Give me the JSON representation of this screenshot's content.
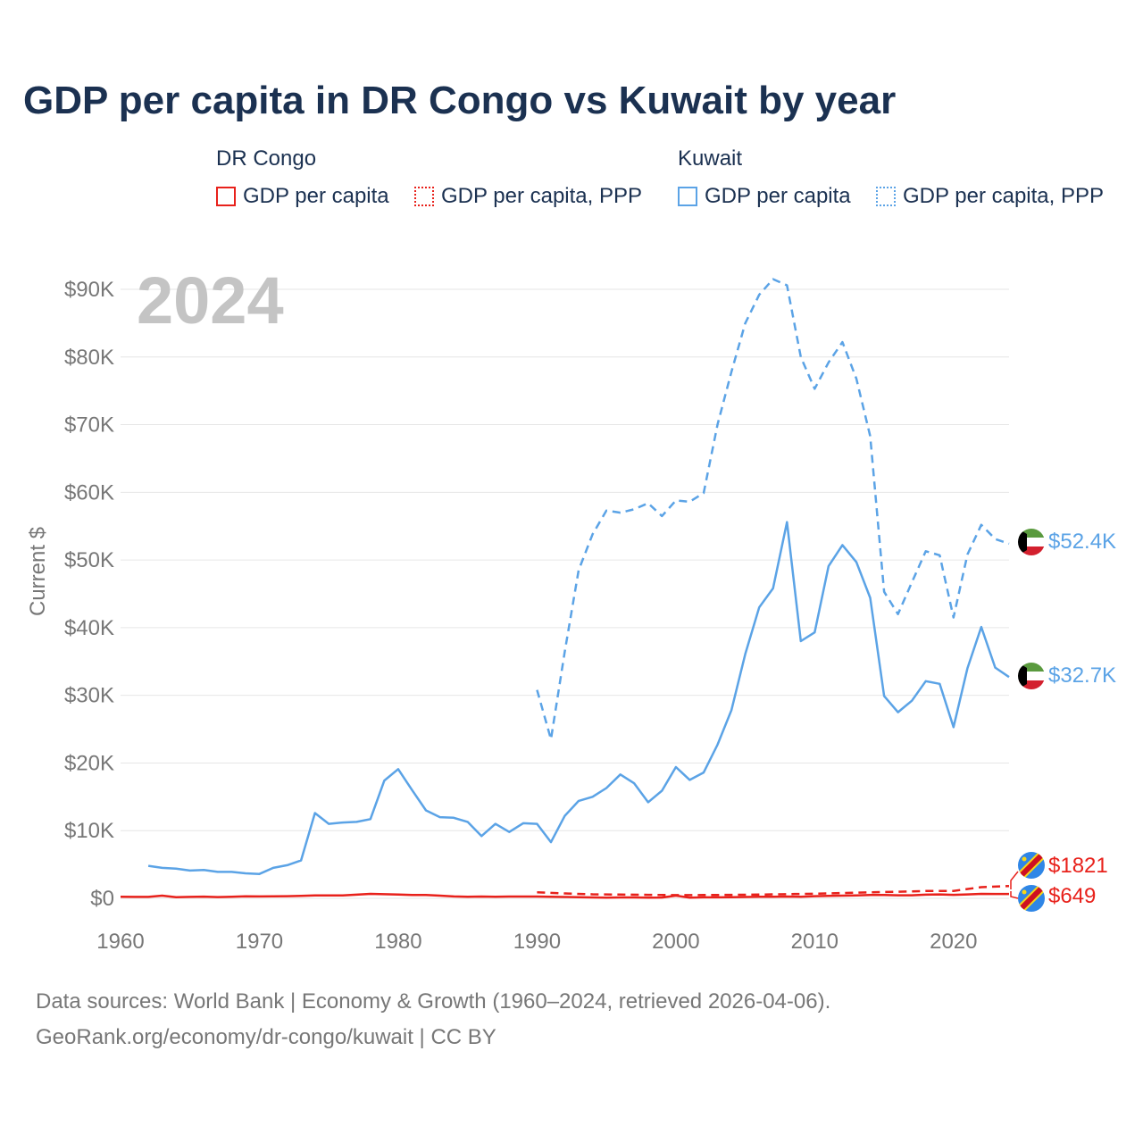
{
  "title": "GDP per capita in DR Congo vs Kuwait by year",
  "legend": {
    "groups": [
      {
        "name": "DR Congo",
        "color": "#e8211b",
        "items": [
          {
            "label": "GDP per capita",
            "style": "solid"
          },
          {
            "label": "GDP per capita, PPP",
            "style": "dotted"
          }
        ]
      },
      {
        "name": "Kuwait",
        "color": "#5ba3e6",
        "items": [
          {
            "label": "GDP per capita",
            "style": "solid"
          },
          {
            "label": "GDP per capita, PPP",
            "style": "dotted"
          }
        ]
      }
    ]
  },
  "year_watermark": "2024",
  "footer": {
    "line1": "Data sources: World Bank | Economy & Growth (1960–2024, retrieved 2026-04-06).",
    "line2": "GeoRank.org/economy/dr-congo/kuwait | CC BY"
  },
  "chart_data": {
    "type": "line",
    "title": "GDP per capita in DR Congo vs Kuwait by year",
    "xlabel": "",
    "ylabel": "Current $",
    "xlim": [
      1960,
      2024
    ],
    "ylim": [
      0,
      90000
    ],
    "x_ticks": [
      1960,
      1970,
      1980,
      1990,
      2000,
      2010,
      2020
    ],
    "x_tick_labels": [
      "1960",
      "1970",
      "1980",
      "1990",
      "2000",
      "2010",
      "2020"
    ],
    "y_ticks": [
      0,
      10000,
      20000,
      30000,
      40000,
      50000,
      60000,
      70000,
      80000,
      90000
    ],
    "y_tick_labels": [
      "$0",
      "$10K",
      "$20K",
      "$30K",
      "$40K",
      "$50K",
      "$60K",
      "$70K",
      "$80K",
      "$90K"
    ],
    "grid": true,
    "series": [
      {
        "name": "Kuwait GDP per capita",
        "country": "Kuwait",
        "color": "#5ba3e6",
        "dash": "solid",
        "x": [
          1962,
          1963,
          1964,
          1965,
          1966,
          1967,
          1968,
          1969,
          1970,
          1971,
          1972,
          1973,
          1974,
          1975,
          1976,
          1977,
          1978,
          1979,
          1980,
          1981,
          1982,
          1983,
          1984,
          1985,
          1986,
          1987,
          1988,
          1989,
          1990,
          1991,
          1992,
          1993,
          1994,
          1995,
          1996,
          1997,
          1998,
          1999,
          2000,
          2001,
          2002,
          2003,
          2004,
          2005,
          2006,
          2007,
          2008,
          2009,
          2010,
          2011,
          2012,
          2013,
          2014,
          2015,
          2016,
          2017,
          2018,
          2019,
          2020,
          2021,
          2022,
          2023,
          2024
        ],
        "y": [
          4800,
          4500,
          4400,
          4100,
          4200,
          3900,
          3900,
          3700,
          3600,
          4500,
          4900,
          5600,
          12600,
          11000,
          11200,
          11300,
          11700,
          17400,
          19100,
          16000,
          13000,
          12000,
          11900,
          11300,
          9200,
          11000,
          9800,
          11100,
          11000,
          8300,
          12200,
          14400,
          15000,
          16300,
          18300,
          17000,
          14200,
          15900,
          19400,
          17500,
          18600,
          22700,
          27800,
          36100,
          43000,
          45800,
          55600,
          38000,
          39300,
          49100,
          52200,
          49700,
          44400,
          29900,
          27500,
          29200,
          32100,
          31700,
          25300,
          34000,
          40100,
          34100,
          32700
        ],
        "end_label": "$32.7K"
      },
      {
        "name": "Kuwait GDP per capita, PPP",
        "country": "Kuwait",
        "color": "#5ba3e6",
        "dash": "dashed",
        "x": [
          1990,
          1991,
          1992,
          1993,
          1994,
          1995,
          1996,
          1997,
          1998,
          1999,
          2000,
          2001,
          2002,
          2003,
          2004,
          2005,
          2006,
          2007,
          2008,
          2009,
          2010,
          2011,
          2012,
          2013,
          2014,
          2015,
          2016,
          2017,
          2018,
          2019,
          2020,
          2021,
          2022,
          2023,
          2024
        ],
        "y": [
          30800,
          23500,
          36500,
          48500,
          53800,
          57300,
          57000,
          57500,
          58400,
          56500,
          58800,
          58600,
          59900,
          70000,
          77800,
          85000,
          89200,
          91500,
          90600,
          80000,
          75300,
          79200,
          82200,
          76800,
          68300,
          45300,
          42000,
          46700,
          51300,
          50700,
          41500,
          50800,
          55200,
          53100,
          52400
        ],
        "end_label": "$52.4K"
      },
      {
        "name": "DR Congo GDP per capita",
        "country": "DR Congo",
        "color": "#e8211b",
        "dash": "solid",
        "x": [
          1960,
          1961,
          1962,
          1963,
          1964,
          1965,
          1966,
          1967,
          1968,
          1969,
          1970,
          1971,
          1972,
          1973,
          1974,
          1975,
          1976,
          1977,
          1978,
          1979,
          1980,
          1981,
          1982,
          1983,
          1984,
          1985,
          1986,
          1987,
          1988,
          1989,
          1990,
          1991,
          1992,
          1993,
          1994,
          1995,
          1996,
          1997,
          1998,
          1999,
          2000,
          2001,
          2002,
          2003,
          2004,
          2005,
          2006,
          2007,
          2008,
          2009,
          2010,
          2011,
          2012,
          2013,
          2014,
          2015,
          2016,
          2017,
          2018,
          2019,
          2020,
          2021,
          2022,
          2023,
          2024
        ],
        "y": [
          230,
          210,
          210,
          390,
          160,
          210,
          250,
          190,
          220,
          290,
          280,
          300,
          320,
          370,
          430,
          440,
          440,
          540,
          660,
          610,
          570,
          490,
          500,
          400,
          280,
          230,
          260,
          240,
          260,
          260,
          270,
          230,
          200,
          170,
          130,
          110,
          130,
          130,
          110,
          120,
          395,
          110,
          140,
          150,
          170,
          200,
          230,
          240,
          270,
          240,
          320,
          360,
          400,
          440,
          490,
          490,
          450,
          450,
          540,
          580,
          520,
          580,
          660,
          650,
          649
        ],
        "end_label": "$649"
      },
      {
        "name": "DR Congo GDP per capita, PPP",
        "country": "DR Congo",
        "color": "#e8211b",
        "dash": "dashed",
        "x": [
          1990,
          1992,
          1994,
          1996,
          1998,
          2000,
          2002,
          2004,
          2006,
          2008,
          2010,
          2012,
          2014,
          2016,
          2018,
          2020,
          2022,
          2024
        ],
        "y": [
          900,
          720,
          590,
          560,
          510,
          480,
          490,
          520,
          560,
          620,
          680,
          780,
          890,
          980,
          1080,
          1100,
          1650,
          1821
        ],
        "end_label": "$1821"
      }
    ]
  }
}
